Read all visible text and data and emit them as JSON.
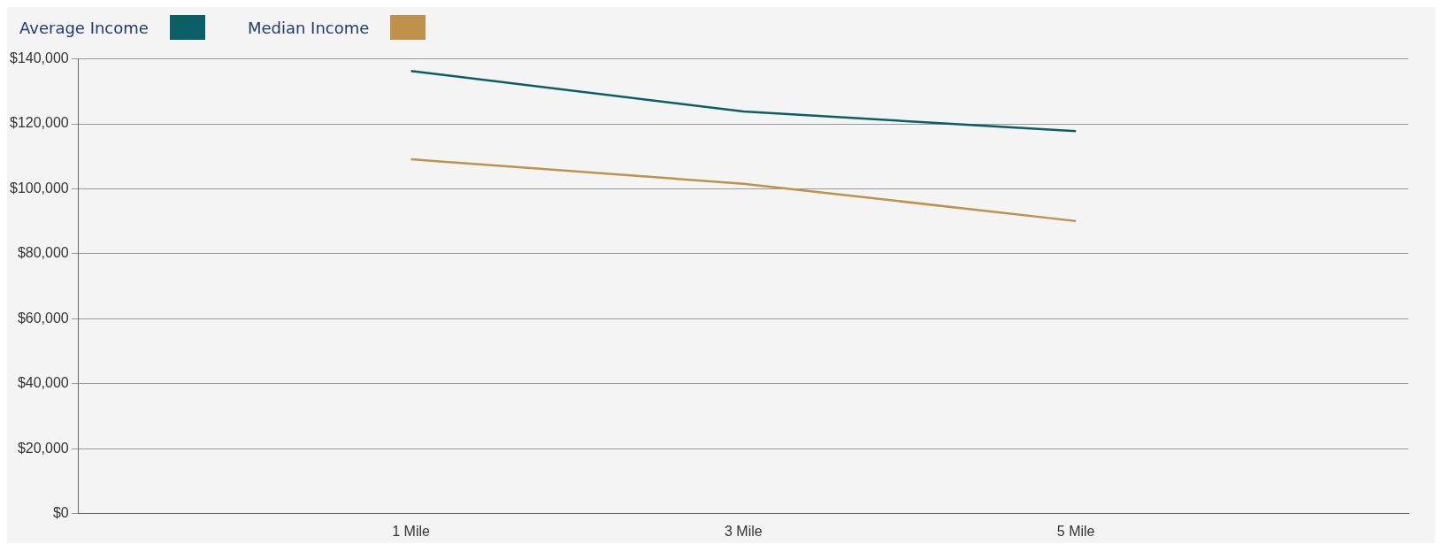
{
  "chart_data": {
    "type": "line",
    "categories": [
      "1 Mile",
      "3 Mile",
      "5 Mile"
    ],
    "series": [
      {
        "name": "Average Income",
        "color": "#0b5e66",
        "values": [
          136300,
          123800,
          117800
        ]
      },
      {
        "name": "Median Income",
        "color": "#c0914a",
        "values": [
          109100,
          101600,
          90100
        ]
      }
    ],
    "ylim": [
      0,
      140000
    ],
    "yticks": [
      {
        "value": 0,
        "label": "$0"
      },
      {
        "value": 20000,
        "label": "$20,000"
      },
      {
        "value": 40000,
        "label": "$40,000"
      },
      {
        "value": 60000,
        "label": "$60,000"
      },
      {
        "value": 80000,
        "label": "$80,000"
      },
      {
        "value": 100000,
        "label": "$100,000"
      },
      {
        "value": 120000,
        "label": "$120,000"
      },
      {
        "value": 140000,
        "label": "$140,000"
      }
    ],
    "grid": "y",
    "legend": "top left",
    "marker": "none",
    "line_style": "solid"
  }
}
